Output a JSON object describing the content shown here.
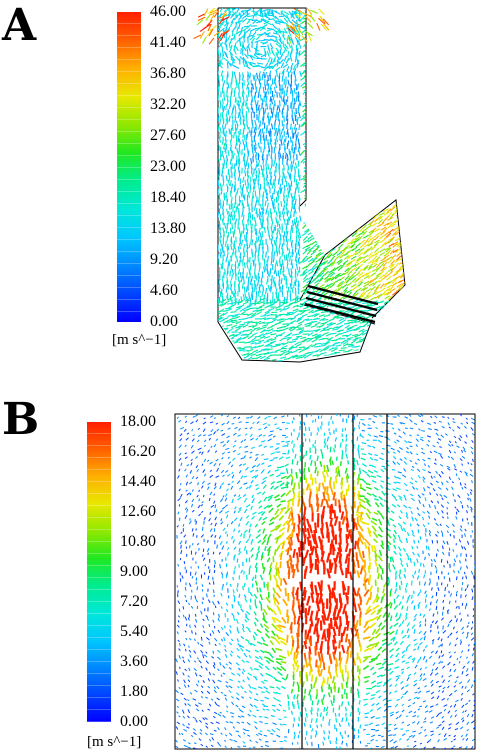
{
  "panels": [
    {
      "letter": "A",
      "colorbar": {
        "ticks": [
          "46.00",
          "41.40",
          "36.80",
          "32.20",
          "27.60",
          "23.00",
          "18.40",
          "13.80",
          "9.20",
          "4.60",
          "0.00"
        ],
        "unit": "[m s^−1]"
      }
    },
    {
      "letter": "B",
      "colorbar": {
        "ticks": [
          "18.00",
          "16.20",
          "14.40",
          "12.60",
          "10.80",
          "9.00",
          "7.20",
          "5.40",
          "3.60",
          "1.80",
          "0.00"
        ],
        "unit": "[m s^−1]"
      }
    }
  ],
  "colormap": [
    "#0000ff",
    "#0044ff",
    "#0088ff",
    "#00c8ff",
    "#00e8d8",
    "#00ec90",
    "#20e820",
    "#90e800",
    "#e8e800",
    "#ffb000",
    "#ff6000",
    "#ff2000"
  ]
}
